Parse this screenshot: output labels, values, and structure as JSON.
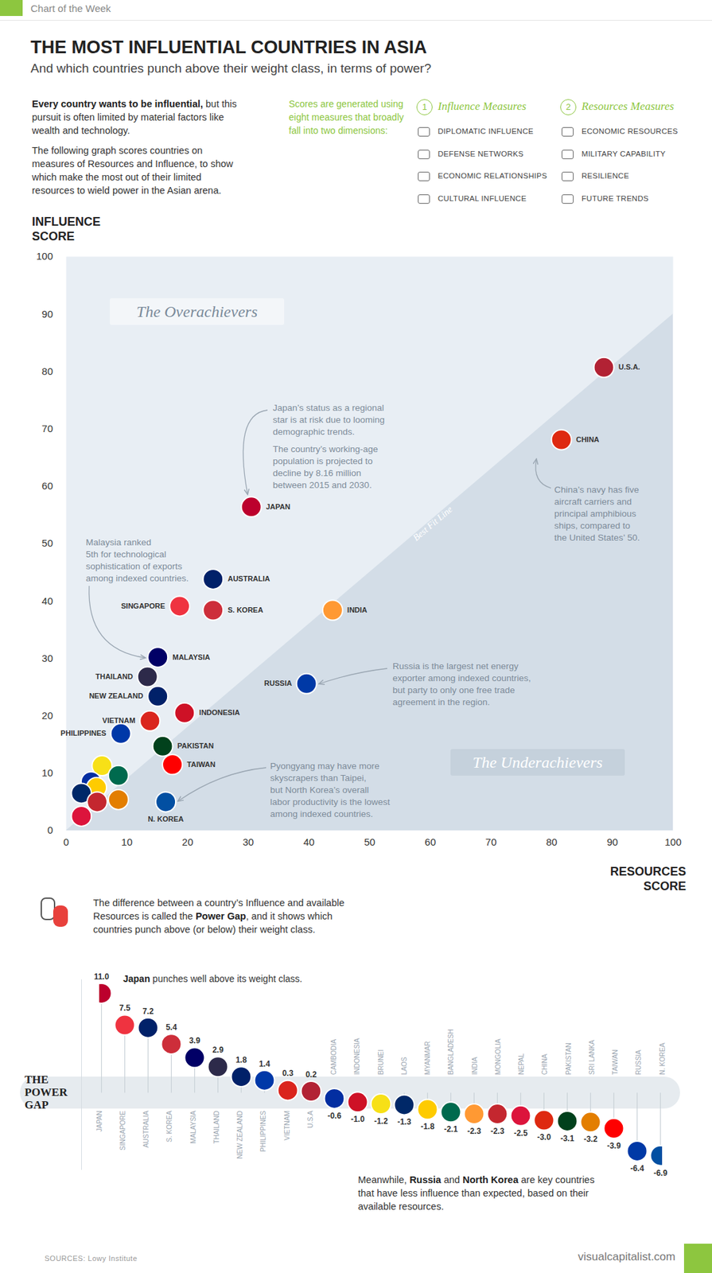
{
  "header": {
    "tag": "Chart of the Week",
    "title": "THE MOST INFLUENTIAL COUNTRIES IN ASIA",
    "subtitle": "And which countries punch above their weight class, in terms of power?"
  },
  "intro": {
    "paragraphs": [
      [
        {
          "text": "Every country wants to be influential,",
          "bold": true
        },
        {
          "text": " but this pursuit is often limited by material factors like wealth and technology."
        }
      ],
      [
        {
          "text": "The following graph scores countries on measures of Resources and Influence, to show which make the most out of their limited resources to wield power in the Asian arena."
        }
      ]
    ],
    "measures_note": "Scores are generated using eight measures that broadly fall into two dimensions:",
    "dimensions": [
      {
        "number": 1,
        "name": "Influence Measures",
        "items": [
          "DIPLOMATIC INFLUENCE",
          "DEFENSE NETWORKS",
          "ECONOMIC RELATIONSHIPS",
          "CULTURAL INFLUENCE"
        ]
      },
      {
        "number": 2,
        "name": "Resources Measures",
        "items": [
          "ECONOMIC RESOURCES",
          "MILITARY CAPABILITY",
          "RESILIENCE",
          "FUTURE TRENDS"
        ]
      }
    ]
  },
  "chart_data": [
    {
      "type": "scatter",
      "x_label": "RESOURCES SCORE",
      "y_label": "INFLUENCE SCORE",
      "xlim": [
        0,
        100
      ],
      "ylim": [
        0,
        100
      ],
      "xticks": [
        0,
        10,
        20,
        30,
        40,
        50,
        60,
        70,
        80,
        90,
        100
      ],
      "yticks": [
        0,
        10,
        20,
        30,
        40,
        50,
        60,
        70,
        80,
        90,
        100
      ],
      "labels": [
        "U.S.A.",
        "CHINA",
        "JAPAN",
        "AUSTRALIA",
        "SINGAPORE",
        "S. KOREA",
        "INDIA",
        "MALAYSIA",
        "THAILAND",
        "NEW ZEALAND",
        "INDONESIA",
        "VIETNAM",
        "RUSSIA",
        "PHILIPPINES",
        "PAKISTAN",
        "TAIWAN",
        "N. KOREA",
        null,
        null,
        null,
        null,
        null,
        null,
        null,
        null
      ],
      "x": [
        88.6,
        81.6,
        30.5,
        24.2,
        18.7,
        24.2,
        43.9,
        15.1,
        13.4,
        15.1,
        19.5,
        13.8,
        39.6,
        9.0,
        15.9,
        17.5,
        16.4,
        5.9,
        8.6,
        4.1,
        5.0,
        2.5,
        5.1,
        8.6,
        2.5
      ],
      "y": [
        80.7,
        68.1,
        56.4,
        43.8,
        39.1,
        38.4,
        38.4,
        30.2,
        26.8,
        23.4,
        20.5,
        19.1,
        25.6,
        16.9,
        14.7,
        11.5,
        5.0,
        11.3,
        9.6,
        8.5,
        7.5,
        6.5,
        5.0,
        5.4,
        2.5
      ],
      "colors": [
        "#b22234",
        "#de2910",
        "#bc002d",
        "#012169",
        "#ef3340",
        "#cd2e3a",
        "#ff9933",
        "#010066",
        "#2d2a4a",
        "#012169",
        "#ce1126",
        "#da251d",
        "#0039a6",
        "#0038a8",
        "#01411c",
        "#fe0000",
        "#024fa2",
        "#f7e017",
        "#006a4e",
        "#032ea1",
        "#fecb00",
        "#002868",
        "#c4272f",
        "#e37e00",
        "#dc143c"
      ],
      "regions": [
        "The Overachievers",
        "The Underachievers"
      ],
      "best_fit_line": {
        "name": "Best Fit Line",
        "x": [
          0,
          100
        ],
        "y": [
          0,
          90
        ]
      },
      "annotations": [
        {
          "paragraphs": [
            [
              "Japan’s status as a regional",
              "star is at risk due to looming",
              "demographic trends."
            ],
            [
              "The country’s working-age",
              "population is projected to",
              "decline by 8.16 million",
              "between 2015 and 2030."
            ]
          ]
        },
        {
          "paragraphs": [
            [
              "China’s navy has five",
              "aircraft carriers and",
              "principal amphibious",
              "ships, compared to",
              "the United States’ 50."
            ]
          ]
        },
        {
          "paragraphs": [
            [
              "Malaysia ranked",
              "5th for technological",
              "sophistication of exports",
              "among indexed countries."
            ]
          ]
        },
        {
          "paragraphs": [
            [
              "Russia is the largest net energy",
              "exporter among indexed countries,",
              "but party to only one free trade",
              "agreement in the region."
            ]
          ]
        },
        {
          "paragraphs": [
            [
              "Pyongyang may have more",
              "skyscrapers than Taipei,",
              "but North Korea’s overall",
              "labor productivity is the lowest",
              "among indexed countries."
            ]
          ]
        }
      ]
    },
    {
      "type": "lollipop",
      "title": "THE POWER GAP",
      "description": [
        {
          "text": "The difference between a country’s Influence and available Resources is called the "
        },
        {
          "text": "Power Gap",
          "bold": true
        },
        {
          "text": ", and it shows which countries punch above (or below) their weight class."
        }
      ],
      "categories": [
        "JAPAN",
        "SINGAPORE",
        "AUSTRALIA",
        "S. KOREA",
        "MALAYSIA",
        "THAILAND",
        "NEW ZEALAND",
        "PHILIPPINES",
        "VIETNAM",
        "U.S.A",
        "CAMBODIA",
        "INDONESIA",
        "BRUNEI",
        "LAOS",
        "MYANMAR",
        "BANGLADESH",
        "INDIA",
        "MONGOLIA",
        "NEPAL",
        "CHINA",
        "PAKISTAN",
        "SRI LANKA",
        "TAIWAN",
        "RUSSIA",
        "N. KOREA"
      ],
      "values": [
        11.0,
        7.5,
        7.2,
        5.4,
        3.9,
        2.9,
        1.8,
        1.4,
        0.3,
        0.2,
        -0.6,
        -1.0,
        -1.2,
        -1.3,
        -1.8,
        -2.1,
        -2.3,
        -2.3,
        -2.5,
        -3.0,
        -3.1,
        -3.2,
        -3.9,
        -6.4,
        -6.9
      ],
      "value_labels": [
        "11.0",
        "7.5",
        "7.2",
        "5.4",
        "3.9",
        "2.9",
        "1.8",
        "1.4",
        "0.3",
        "0.2",
        "-0.6",
        "-1.0",
        "-1.2",
        "-1.3",
        "-1.8",
        "-2.1",
        "-2.3",
        "-2.3",
        "-2.5",
        "-3.0",
        "-3.1",
        "-3.2",
        "-3.9",
        "-6.4",
        "-6.9"
      ],
      "colors": [
        "#bc002d",
        "#ef3340",
        "#012169",
        "#cd2e3a",
        "#010066",
        "#2d2a4a",
        "#012169",
        "#0038a8",
        "#da251d",
        "#b22234",
        "#032ea1",
        "#ce1126",
        "#f7e017",
        "#002868",
        "#fecb00",
        "#006a4e",
        "#ff9933",
        "#c4272f",
        "#dc143c",
        "#de2910",
        "#01411c",
        "#e37e00",
        "#fe0000",
        "#0039a6",
        "#024fa2"
      ],
      "ylim": [
        -8.5,
        12.5
      ],
      "tick_labels": false,
      "data_labels": true,
      "annotations": [
        [
          {
            "text": "Japan",
            "bold": true
          },
          {
            "text": " punches well above its weight class."
          }
        ],
        [
          {
            "text": "Meanwhile, "
          },
          {
            "text": "Russia",
            "bold": true
          },
          {
            "text": " and "
          },
          {
            "text": "North Korea",
            "bold": true
          },
          {
            "text": " are key countries that have less influence than expected, based on their available resources."
          }
        ]
      ]
    }
  ],
  "footer": {
    "source": "SOURCES: Lowy Institute",
    "site": "visualcapitalist.com"
  }
}
